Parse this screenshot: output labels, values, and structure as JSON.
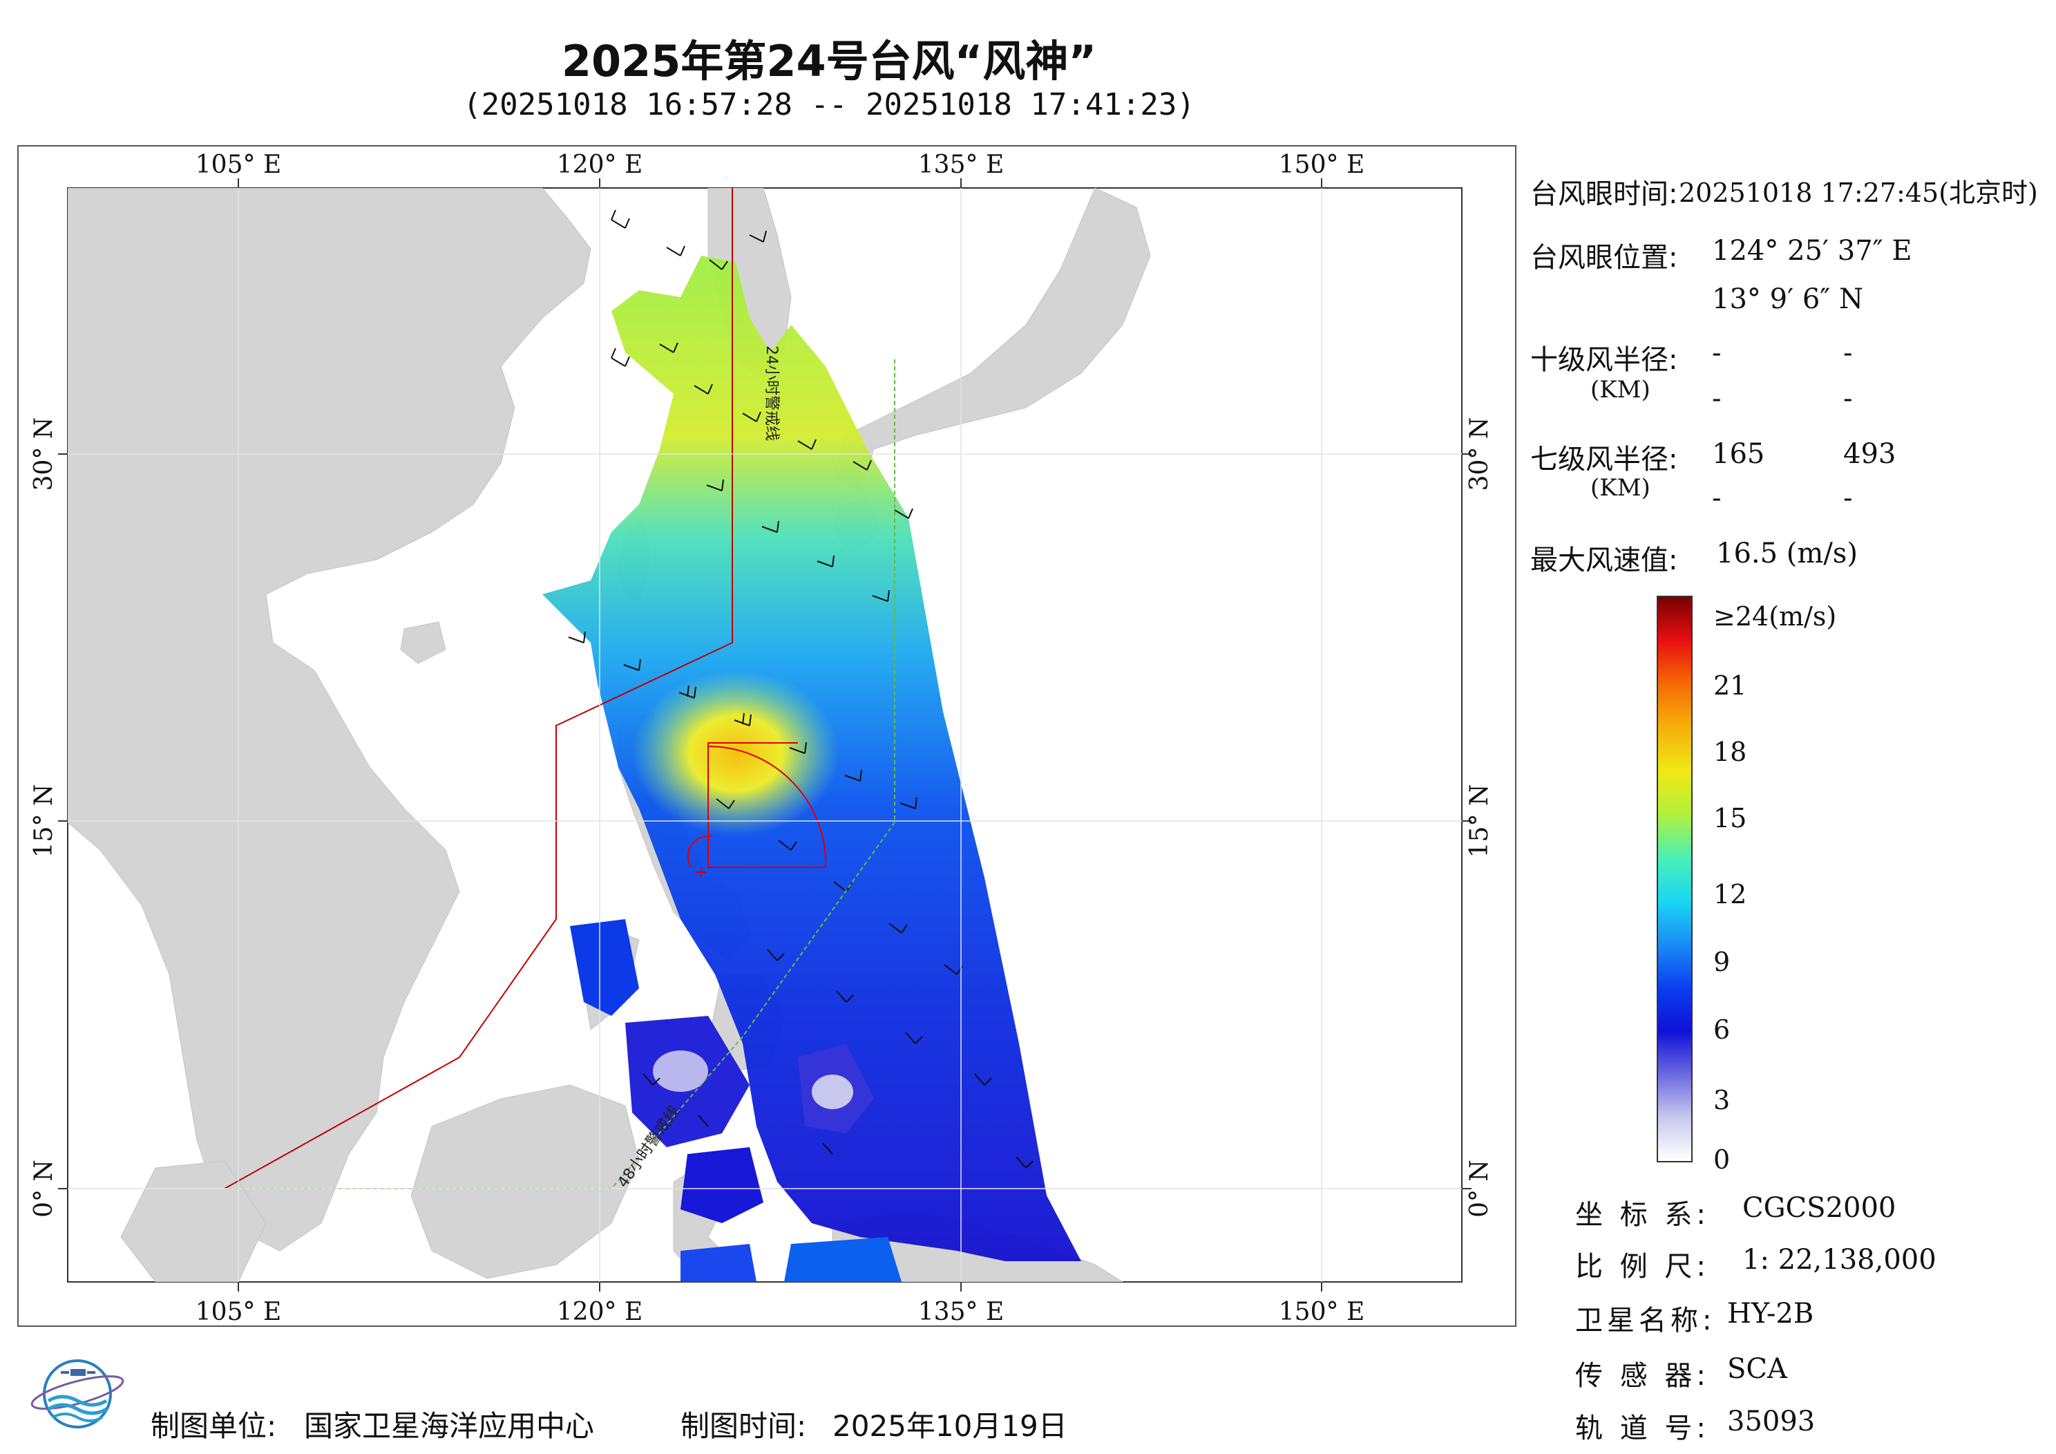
{
  "title": "2025年第24号台风“风神”",
  "subtitle": "(20251018 16:57:28 -- 20251018 17:41:23)",
  "map": {
    "lon_ticks": [
      "105° E",
      "120° E",
      "135° E",
      "150° E"
    ],
    "lat_ticks": [
      "30° N",
      "15° N",
      "0° N"
    ],
    "warning_24h": "24小时警戒线",
    "warning_48h": "48小时警戒线",
    "colors": {
      "land": "#d3d3d3",
      "sea": "#ffffff",
      "warning_line": "#c00000",
      "warning_48h_line": "#66bb44",
      "typhoon_box": "#dd0000"
    }
  },
  "info": {
    "eye_time_label": "台风眼时间:",
    "eye_time_value": "20251018 17:27:45(北京时)",
    "eye_pos_label": "台风眼位置:",
    "eye_lon": "124° 25′ 37″ E",
    "eye_lat": "13° 9′ 6″ N",
    "r10_label": "十级风半径:",
    "r10_unit": "(KM)",
    "r10_values": [
      "-",
      "-",
      "-",
      "-"
    ],
    "r7_label": "七级风半径:",
    "r7_unit": "(KM)",
    "r7_values": [
      "165",
      "493",
      "-",
      "-"
    ],
    "max_wind_label": "最大风速值:",
    "max_wind_value": "16.5  (m/s)"
  },
  "colorbar": {
    "labels": [
      "≥24(m/s)",
      "21",
      "18",
      "15",
      "12",
      "9",
      "6",
      "3",
      "0"
    ],
    "stops": [
      "#ffffff",
      "#c8c8ee",
      "#6a6ae0",
      "#1010d8",
      "#0a40f0",
      "#1a8cf5",
      "#19d8f2",
      "#4cf0b4",
      "#b4f03c",
      "#f0e814",
      "#f5b00a",
      "#f56a05",
      "#e81010",
      "#7a0000"
    ]
  },
  "meta": {
    "crs_label": "坐 标 系:",
    "crs_value": "CGCS2000",
    "scale_label": "比 例 尺:",
    "scale_value": "1: 22,138,000",
    "satellite_label": "卫星名称:",
    "satellite_value": "HY-2B",
    "sensor_label": "传 感 器:",
    "sensor_value": "SCA",
    "orbit_label": "轨 道 号:",
    "orbit_value": "35093"
  },
  "footer": {
    "producer_label": "制图单位:",
    "producer_value": "国家卫星海洋应用中心",
    "date_label": "制图时间:",
    "date_value": "2025年10月19日"
  }
}
